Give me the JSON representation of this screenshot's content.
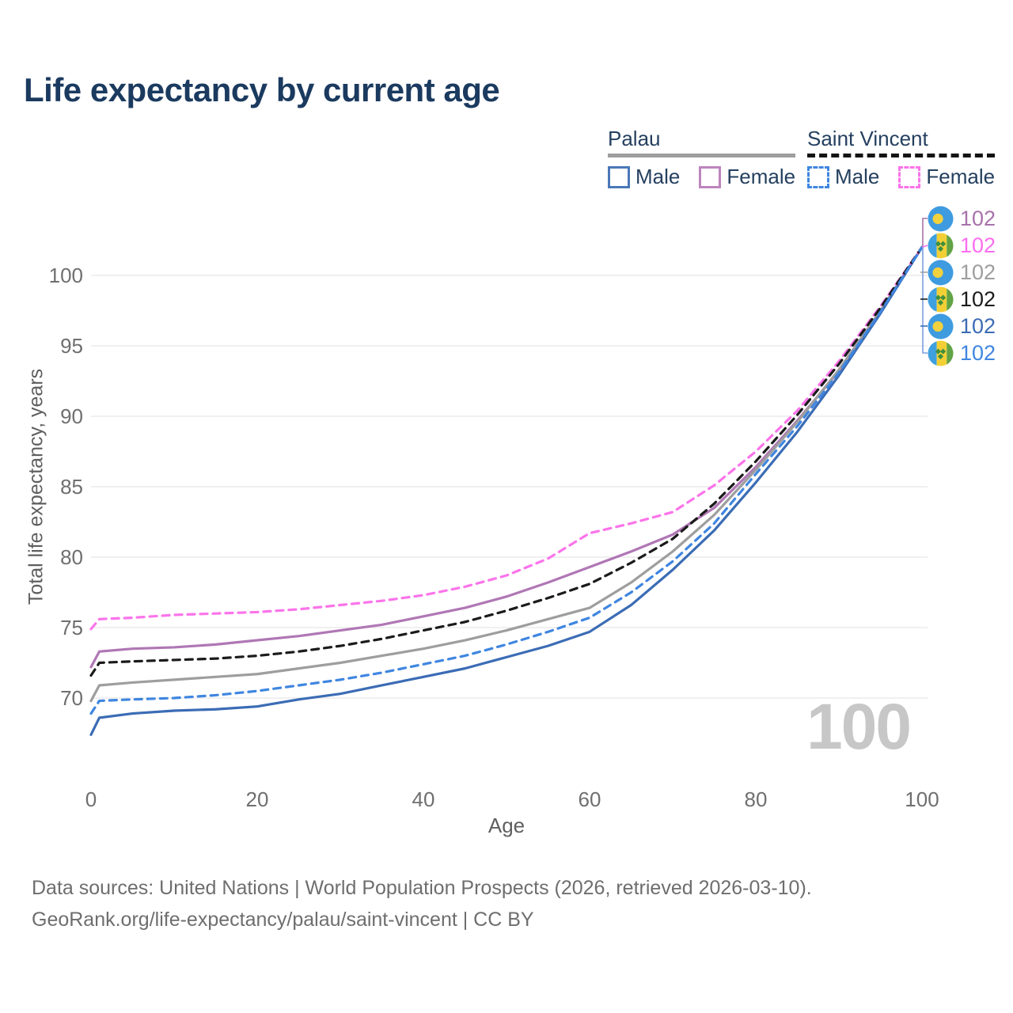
{
  "title": "Life expectancy by current age",
  "legend": {
    "groups": [
      {
        "name": "Palau",
        "underline_style": "solid",
        "underline_color": "#9e9e9e",
        "items": [
          {
            "label": "Male",
            "color": "#3b6cb5",
            "dash": false
          },
          {
            "label": "Female",
            "color": "#bd85bd",
            "dash": false
          }
        ]
      },
      {
        "name": "Saint Vincent",
        "underline_style": "dashed",
        "underline_color": "#141414",
        "items": [
          {
            "label": "Male",
            "color": "#3f86e0",
            "dash": true
          },
          {
            "label": "Female",
            "color": "#fb74ea",
            "dash": true
          }
        ]
      }
    ]
  },
  "chart_data": {
    "type": "line",
    "title": "Life expectancy by current age",
    "xlabel": "Age",
    "ylabel": "Total life expectancy, years",
    "xlim": [
      0,
      100
    ],
    "ylim": [
      67,
      103
    ],
    "xticks": [
      0,
      20,
      40,
      60,
      80,
      100
    ],
    "yticks": [
      100,
      95,
      90,
      85,
      80,
      75,
      70
    ],
    "grid": "horizontal",
    "gridline_color": "#e7e7e7",
    "watermark": "100",
    "ages": [
      0,
      1,
      5,
      10,
      15,
      20,
      25,
      30,
      35,
      40,
      45,
      50,
      55,
      60,
      65,
      70,
      75,
      80,
      85,
      90,
      95,
      100
    ],
    "series": [
      {
        "name": "Palau Female",
        "country": "Palau",
        "sex": "Female",
        "color": "#b077b5",
        "dash": false,
        "values": [
          72.2,
          73.3,
          73.5,
          73.6,
          73.8,
          74.1,
          74.4,
          74.8,
          75.2,
          75.8,
          76.4,
          77.2,
          78.2,
          79.3,
          80.4,
          81.6,
          83.5,
          86.4,
          89.7,
          93.2,
          97.4,
          102
        ]
      },
      {
        "name": "Palau Total",
        "country": "Palau",
        "sex": "Both",
        "color": "#9e9e9e",
        "dash": false,
        "values": [
          69.8,
          70.9,
          71.1,
          71.3,
          71.5,
          71.7,
          72.1,
          72.5,
          73.0,
          73.5,
          74.1,
          74.8,
          75.6,
          76.4,
          78.2,
          80.4,
          83.0,
          86.2,
          89.6,
          93.3,
          97.5,
          102
        ]
      },
      {
        "name": "Palau Male",
        "country": "Palau",
        "sex": "Male",
        "color": "#3b6cb5",
        "dash": false,
        "values": [
          67.4,
          68.6,
          68.9,
          69.1,
          69.2,
          69.4,
          69.9,
          70.3,
          70.9,
          71.5,
          72.1,
          72.9,
          73.7,
          74.7,
          76.6,
          79.1,
          81.9,
          85.3,
          88.9,
          92.9,
          97.3,
          102
        ]
      },
      {
        "name": "Saint Vincent Female",
        "country": "Saint Vincent",
        "sex": "Female",
        "color": "#fb74ea",
        "dash": true,
        "values": [
          74.9,
          75.6,
          75.7,
          75.9,
          76.0,
          76.1,
          76.3,
          76.6,
          76.9,
          77.3,
          77.9,
          78.7,
          79.9,
          81.7,
          82.4,
          83.2,
          85.1,
          87.5,
          90.4,
          93.9,
          97.8,
          102
        ]
      },
      {
        "name": "Saint Vincent Total",
        "country": "Saint Vincent",
        "sex": "Both",
        "color": "#1b1b1b",
        "dash": true,
        "values": [
          71.6,
          72.5,
          72.6,
          72.7,
          72.8,
          73.0,
          73.3,
          73.7,
          74.2,
          74.8,
          75.4,
          76.2,
          77.1,
          78.1,
          79.6,
          81.3,
          83.8,
          86.8,
          90.1,
          93.7,
          97.7,
          102
        ]
      },
      {
        "name": "Saint Vincent Male",
        "country": "Saint Vincent",
        "sex": "Male",
        "color": "#3f86e0",
        "dash": true,
        "values": [
          68.9,
          69.8,
          69.9,
          70.0,
          70.2,
          70.5,
          70.9,
          71.3,
          71.8,
          72.4,
          73.0,
          73.8,
          74.7,
          75.7,
          77.5,
          79.7,
          82.4,
          85.9,
          89.3,
          93.1,
          97.4,
          102
        ]
      }
    ],
    "end_labels": [
      {
        "flag": "palau",
        "value": "102",
        "color": "#a872aa"
      },
      {
        "flag": "saint-vincent",
        "value": "102",
        "color": "#fc6ef0"
      },
      {
        "flag": "palau",
        "value": "102",
        "color": "#9e9e9e"
      },
      {
        "flag": "saint-vincent",
        "value": "102",
        "color": "#1b1b1b"
      },
      {
        "flag": "palau",
        "value": "102",
        "color": "#3b6cb5"
      },
      {
        "flag": "saint-vincent",
        "value": "102",
        "color": "#3f86e0"
      }
    ]
  },
  "footer": {
    "line1": "Data sources: United Nations | World Population Prospects (2026, retrieved 2026-03-10).",
    "line2": "GeoRank.org/life-expectancy/palau/saint-vincent | CC BY"
  }
}
